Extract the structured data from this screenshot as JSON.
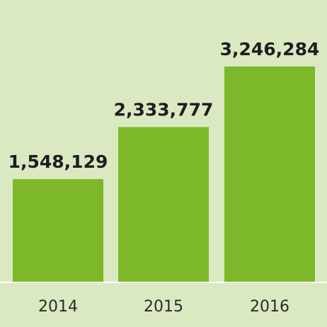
{
  "chart_data": {
    "type": "bar",
    "categories": [
      "2014",
      "2015",
      "2016"
    ],
    "values": [
      1548129,
      2333777,
      3246284
    ],
    "value_labels": [
      "1,548,129",
      "2,333,777",
      "3,246,284"
    ],
    "color": "#7cb82a"
  }
}
